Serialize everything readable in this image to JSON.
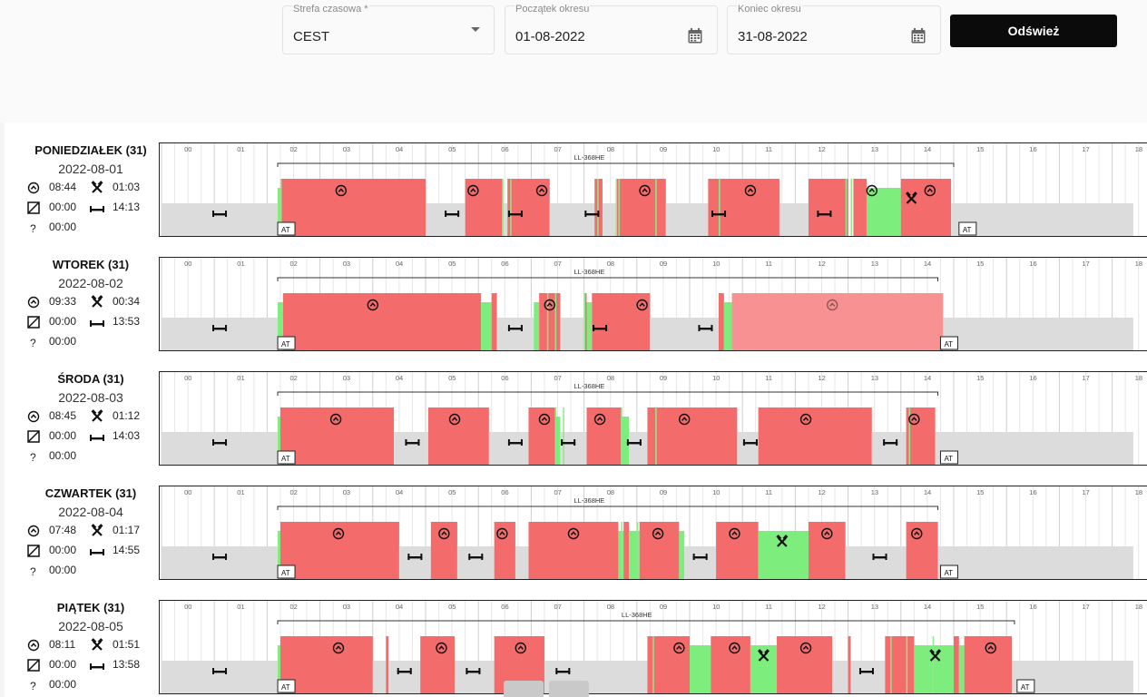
{
  "filters": {
    "timezone": {
      "label": "Strefa czasowa *",
      "value": "CEST"
    },
    "period_start": {
      "label": "Początek okresu",
      "value": "01-08-2022"
    },
    "period_end": {
      "label": "Koniec okresu",
      "value": "31-08-2022"
    },
    "refresh_label": "Odśwież"
  },
  "hour_labels": [
    "00",
    "01",
    "02",
    "03",
    "04",
    "05",
    "06",
    "07",
    "08",
    "09",
    "10",
    "11",
    "12",
    "13",
    "14",
    "15",
    "16",
    "17",
    "18"
  ],
  "colors": {
    "driving": "#f46b6b",
    "work": "#7ded7d",
    "rest": "#dcdcdc",
    "ghost": "#f89191"
  },
  "days": [
    {
      "name": "PONIEDZIAŁEK (31)",
      "date": "2022-08-01",
      "driving": "08:44",
      "work": "01:03",
      "availability": "00:00",
      "rest": "14:13",
      "unknown": "00:00",
      "vehicle": "LL-368HE",
      "vehicle_span": [
        2.2,
        15.0
      ],
      "vehicle_label_at": 8.1,
      "at_hours": [
        2.2,
        15.1
      ],
      "segments": [
        {
          "t": "rest",
          "s": 0.0,
          "e": 2.2
        },
        {
          "t": "work",
          "s": 2.2,
          "e": 2.25
        },
        {
          "t": "drive",
          "s": 2.25,
          "e": 5.0
        },
        {
          "t": "rest",
          "s": 5.0,
          "e": 5.75
        },
        {
          "t": "drive",
          "s": 5.75,
          "e": 6.45
        },
        {
          "t": "rest",
          "s": 6.45,
          "e": 6.55
        },
        {
          "t": "drive",
          "s": 6.55,
          "e": 7.35
        },
        {
          "t": "rest",
          "s": 7.35,
          "e": 8.2
        },
        {
          "t": "drive",
          "s": 8.2,
          "e": 8.35
        },
        {
          "t": "rest",
          "s": 8.35,
          "e": 8.6
        },
        {
          "t": "drive",
          "s": 8.6,
          "e": 9.55
        },
        {
          "t": "rest",
          "s": 9.55,
          "e": 10.35
        },
        {
          "t": "drive",
          "s": 10.35,
          "e": 11.7
        },
        {
          "t": "rest",
          "s": 11.7,
          "e": 12.25
        },
        {
          "t": "drive",
          "s": 12.25,
          "e": 13.0
        },
        {
          "t": "drive",
          "s": 13.1,
          "e": 13.35
        },
        {
          "t": "work",
          "s": 13.35,
          "e": 14.0
        },
        {
          "t": "drive",
          "s": 14.0,
          "e": 14.95
        },
        {
          "t": "rest",
          "s": 14.95,
          "e": 18.4
        }
      ],
      "dividers": [
        2.25,
        6.45,
        6.6,
        8.25,
        8.6,
        8.65,
        9.35,
        10.55,
        12.95,
        13.05
      ],
      "drive_icons": [
        3.4,
        5.9,
        7.2,
        9.15,
        11.15,
        13.45,
        14.55
      ],
      "work_icons": [
        14.2
      ],
      "rest_icons": [
        1.1,
        5.5,
        6.7,
        8.15,
        10.55,
        12.55
      ]
    },
    {
      "name": "WTOREK (31)",
      "date": "2022-08-02",
      "driving": "09:33",
      "work": "00:34",
      "availability": "00:00",
      "rest": "13:53",
      "unknown": "00:00",
      "vehicle": "LL-368HE",
      "vehicle_span": [
        2.2,
        14.7
      ],
      "vehicle_label_at": 8.1,
      "at_hours": [
        2.2,
        14.75
      ],
      "segments": [
        {
          "t": "rest",
          "s": 0.0,
          "e": 2.2
        },
        {
          "t": "work",
          "s": 2.2,
          "e": 2.3
        },
        {
          "t": "drive",
          "s": 2.3,
          "e": 6.05
        },
        {
          "t": "work",
          "s": 6.05,
          "e": 6.25
        },
        {
          "t": "drive",
          "s": 6.25,
          "e": 6.35
        },
        {
          "t": "rest",
          "s": 6.35,
          "e": 7.05
        },
        {
          "t": "work",
          "s": 7.05,
          "e": 7.15
        },
        {
          "t": "drive",
          "s": 7.15,
          "e": 7.55
        },
        {
          "t": "rest",
          "s": 7.55,
          "e": 8.0
        },
        {
          "t": "drive",
          "s": 8.0,
          "e": 8.05
        },
        {
          "t": "work",
          "s": 8.05,
          "e": 8.15
        },
        {
          "t": "drive",
          "s": 8.15,
          "e": 9.25
        },
        {
          "t": "rest",
          "s": 9.25,
          "e": 10.55
        },
        {
          "t": "drive",
          "s": 10.55,
          "e": 10.65
        },
        {
          "t": "work",
          "s": 10.65,
          "e": 10.8
        },
        {
          "t": "ghost",
          "s": 10.8,
          "e": 14.8
        },
        {
          "t": "rest",
          "s": 14.8,
          "e": 18.4
        }
      ],
      "dividers": [
        7.3,
        7.45,
        8.0
      ],
      "drive_icons": [
        4.0,
        7.35,
        9.1
      ],
      "ghost_icons": [
        12.7
      ],
      "work_icons": [],
      "rest_icons": [
        1.1,
        6.7,
        8.3,
        10.3
      ]
    },
    {
      "name": "ŚRODA (31)",
      "date": "2022-08-03",
      "driving": "08:45",
      "work": "01:12",
      "availability": "00:00",
      "rest": "14:03",
      "unknown": "00:00",
      "vehicle": "LL-368HE",
      "vehicle_span": [
        2.2,
        14.7
      ],
      "vehicle_label_at": 8.1,
      "at_hours": [
        2.2,
        14.75
      ],
      "segments": [
        {
          "t": "rest",
          "s": 0.0,
          "e": 2.2
        },
        {
          "t": "work",
          "s": 2.2,
          "e": 2.25
        },
        {
          "t": "drive",
          "s": 2.25,
          "e": 4.4
        },
        {
          "t": "rest",
          "s": 4.4,
          "e": 5.05
        },
        {
          "t": "drive",
          "s": 5.05,
          "e": 6.2
        },
        {
          "t": "rest",
          "s": 6.2,
          "e": 6.95
        },
        {
          "t": "drive",
          "s": 6.95,
          "e": 7.45
        },
        {
          "t": "work",
          "s": 7.45,
          "e": 7.55
        },
        {
          "t": "rest",
          "s": 7.55,
          "e": 8.05
        },
        {
          "t": "drive",
          "s": 8.05,
          "e": 8.7
        },
        {
          "t": "work",
          "s": 8.7,
          "e": 8.85
        },
        {
          "t": "rest",
          "s": 8.85,
          "e": 9.2
        },
        {
          "t": "drive",
          "s": 9.2,
          "e": 9.35
        },
        {
          "t": "drive",
          "s": 9.35,
          "e": 10.9
        },
        {
          "t": "rest",
          "s": 10.9,
          "e": 11.3
        },
        {
          "t": "drive",
          "s": 11.3,
          "e": 13.45
        },
        {
          "t": "rest",
          "s": 13.45,
          "e": 14.1
        },
        {
          "t": "drive",
          "s": 14.1,
          "e": 14.65
        },
        {
          "t": "rest",
          "s": 14.65,
          "e": 18.4
        }
      ],
      "dividers": [
        7.45,
        7.6,
        8.7,
        9.35,
        14.15
      ],
      "drive_icons": [
        3.3,
        5.55,
        7.25,
        8.3,
        9.9,
        12.2,
        14.25
      ],
      "work_icons": [],
      "rest_icons": [
        1.1,
        4.75,
        6.7,
        7.7,
        8.95,
        11.15,
        13.8
      ]
    },
    {
      "name": "CZWARTEK (31)",
      "date": "2022-08-04",
      "driving": "07:48",
      "work": "01:17",
      "availability": "00:00",
      "rest": "14:55",
      "unknown": "00:00",
      "vehicle": "LL-368HE",
      "vehicle_span": [
        2.2,
        14.7
      ],
      "vehicle_label_at": 8.1,
      "at_hours": [
        2.2,
        14.75
      ],
      "segments": [
        {
          "t": "rest",
          "s": 0.0,
          "e": 2.2
        },
        {
          "t": "work",
          "s": 2.2,
          "e": 2.25
        },
        {
          "t": "drive",
          "s": 2.25,
          "e": 4.5
        },
        {
          "t": "rest",
          "s": 4.5,
          "e": 5.1
        },
        {
          "t": "drive",
          "s": 5.1,
          "e": 5.6
        },
        {
          "t": "rest",
          "s": 5.6,
          "e": 6.3
        },
        {
          "t": "drive",
          "s": 6.3,
          "e": 6.7
        },
        {
          "t": "rest",
          "s": 6.7,
          "e": 6.95
        },
        {
          "t": "drive",
          "s": 6.95,
          "e": 8.65
        },
        {
          "t": "work",
          "s": 8.65,
          "e": 8.75
        },
        {
          "t": "drive",
          "s": 8.75,
          "e": 8.85
        },
        {
          "t": "work",
          "s": 8.85,
          "e": 9.05
        },
        {
          "t": "drive",
          "s": 9.05,
          "e": 9.8
        },
        {
          "t": "work",
          "s": 9.8,
          "e": 9.9
        },
        {
          "t": "rest",
          "s": 9.9,
          "e": 10.5
        },
        {
          "t": "drive",
          "s": 10.5,
          "e": 11.3
        },
        {
          "t": "work",
          "s": 11.3,
          "e": 12.25
        },
        {
          "t": "drive",
          "s": 12.25,
          "e": 12.95
        },
        {
          "t": "rest",
          "s": 12.95,
          "e": 14.1
        },
        {
          "t": "drive",
          "s": 14.1,
          "e": 14.7
        },
        {
          "t": "rest",
          "s": 14.7,
          "e": 18.4
        }
      ],
      "dividers": [
        8.7,
        9.0
      ],
      "drive_icons": [
        3.35,
        5.35,
        6.45,
        7.8,
        9.4,
        10.85,
        12.6,
        14.3
      ],
      "work_icons": [
        11.75
      ],
      "rest_icons": [
        1.1,
        4.8,
        5.95,
        10.2,
        13.6
      ]
    },
    {
      "name": "PIĄTEK (31)",
      "date": "2022-08-05",
      "driving": "08:11",
      "work": "01:51",
      "availability": "00:00",
      "rest": "13:58",
      "unknown": "00:00",
      "vehicle": "LL-368HE",
      "vehicle_span": [
        2.2,
        16.15
      ],
      "vehicle_label_at": 9.0,
      "at_hours": [
        2.2,
        16.2
      ],
      "segments": [
        {
          "t": "rest",
          "s": 0.0,
          "e": 2.2
        },
        {
          "t": "work",
          "s": 2.2,
          "e": 2.25
        },
        {
          "t": "drive",
          "s": 2.25,
          "e": 4.0
        },
        {
          "t": "rest",
          "s": 4.0,
          "e": 4.25
        },
        {
          "t": "drive",
          "s": 4.25,
          "e": 4.3
        },
        {
          "t": "rest",
          "s": 4.3,
          "e": 4.9
        },
        {
          "t": "drive",
          "s": 4.9,
          "e": 5.55
        },
        {
          "t": "rest",
          "s": 5.55,
          "e": 6.3
        },
        {
          "t": "drive",
          "s": 6.3,
          "e": 7.25
        },
        {
          "t": "rest",
          "s": 7.25,
          "e": 9.2
        },
        {
          "t": "drive",
          "s": 9.2,
          "e": 10.0
        },
        {
          "t": "work",
          "s": 10.0,
          "e": 10.4
        },
        {
          "t": "drive",
          "s": 10.4,
          "e": 11.15
        },
        {
          "t": "work",
          "s": 11.15,
          "e": 11.65
        },
        {
          "t": "drive",
          "s": 11.65,
          "e": 12.7
        },
        {
          "t": "rest",
          "s": 12.7,
          "e": 13.0
        },
        {
          "t": "drive",
          "s": 13.0,
          "e": 13.05
        },
        {
          "t": "rest",
          "s": 13.05,
          "e": 13.7
        },
        {
          "t": "drive",
          "s": 13.7,
          "e": 14.25
        },
        {
          "t": "work",
          "s": 14.25,
          "e": 15.0
        },
        {
          "t": "drive",
          "s": 15.0,
          "e": 15.1
        },
        {
          "t": "work",
          "s": 15.1,
          "e": 15.2
        },
        {
          "t": "drive",
          "s": 15.2,
          "e": 16.1
        },
        {
          "t": "rest",
          "s": 16.1,
          "e": 18.4
        }
      ],
      "dividers": [
        9.3,
        13.8,
        14.1,
        14.6
      ],
      "drive_icons": [
        3.35,
        5.3,
        6.8,
        9.8,
        10.85,
        12.2,
        15.7
      ],
      "work_icons": [
        11.4,
        14.65
      ],
      "rest_icons": [
        1.1,
        4.6,
        5.9,
        7.6,
        13.35
      ]
    }
  ],
  "bottom_controls": [
    "up-control",
    "split-control"
  ]
}
